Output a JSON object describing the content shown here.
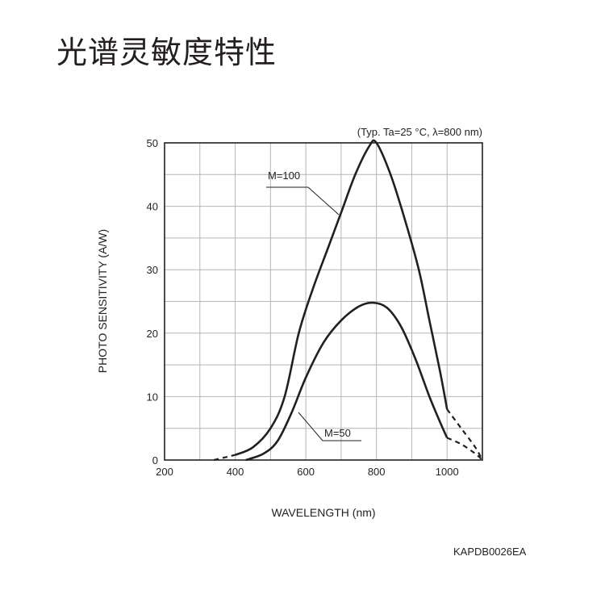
{
  "page": {
    "title": "光谱灵敏度特性",
    "figure_code": "KAPDB0026EA"
  },
  "chart_data": {
    "type": "line",
    "condition_note": "(Typ. Ta=25 °C, λ=800 nm)",
    "xlabel": "WAVELENGTH (nm)",
    "ylabel": "PHOTO SENSITIVITY (A/W)",
    "xlim": [
      200,
      1100
    ],
    "ylim": [
      0,
      50
    ],
    "x_ticks": [
      200,
      400,
      600,
      800,
      1000
    ],
    "y_ticks": [
      0,
      10,
      20,
      30,
      40,
      50
    ],
    "grid": true,
    "series": [
      {
        "name": "M=100",
        "solid": [
          [
            400,
            0.8
          ],
          [
            450,
            2
          ],
          [
            500,
            5
          ],
          [
            540,
            10
          ],
          [
            580,
            20
          ],
          [
            620,
            27
          ],
          [
            660,
            33
          ],
          [
            700,
            39
          ],
          [
            740,
            45
          ],
          [
            780,
            49.5
          ],
          [
            800,
            50
          ],
          [
            840,
            45
          ],
          [
            880,
            38
          ],
          [
            920,
            30
          ],
          [
            950,
            22
          ],
          [
            980,
            14
          ],
          [
            1000,
            8
          ]
        ],
        "dashed": [
          [
            340,
            0
          ],
          [
            400,
            0.8
          ]
        ],
        "dashed_tail": [
          [
            1000,
            8
          ],
          [
            1040,
            5
          ],
          [
            1080,
            2
          ],
          [
            1100,
            0
          ]
        ]
      },
      {
        "name": "M=50",
        "solid": [
          [
            430,
            0
          ],
          [
            480,
            1
          ],
          [
            520,
            3
          ],
          [
            560,
            7.5
          ],
          [
            600,
            13
          ],
          [
            650,
            18.5
          ],
          [
            700,
            22
          ],
          [
            750,
            24.2
          ],
          [
            790,
            24.8
          ],
          [
            830,
            24
          ],
          [
            870,
            21
          ],
          [
            910,
            16
          ],
          [
            950,
            10
          ],
          [
            980,
            6
          ],
          [
            1000,
            3.5
          ]
        ],
        "dashed": [],
        "dashed_tail": [
          [
            1000,
            3.5
          ],
          [
            1040,
            2.5
          ],
          [
            1080,
            1
          ],
          [
            1100,
            0
          ]
        ]
      }
    ],
    "annotations": [
      {
        "label": "M=100",
        "series": "M=100"
      },
      {
        "label": "M=50",
        "series": "M=50"
      }
    ]
  }
}
